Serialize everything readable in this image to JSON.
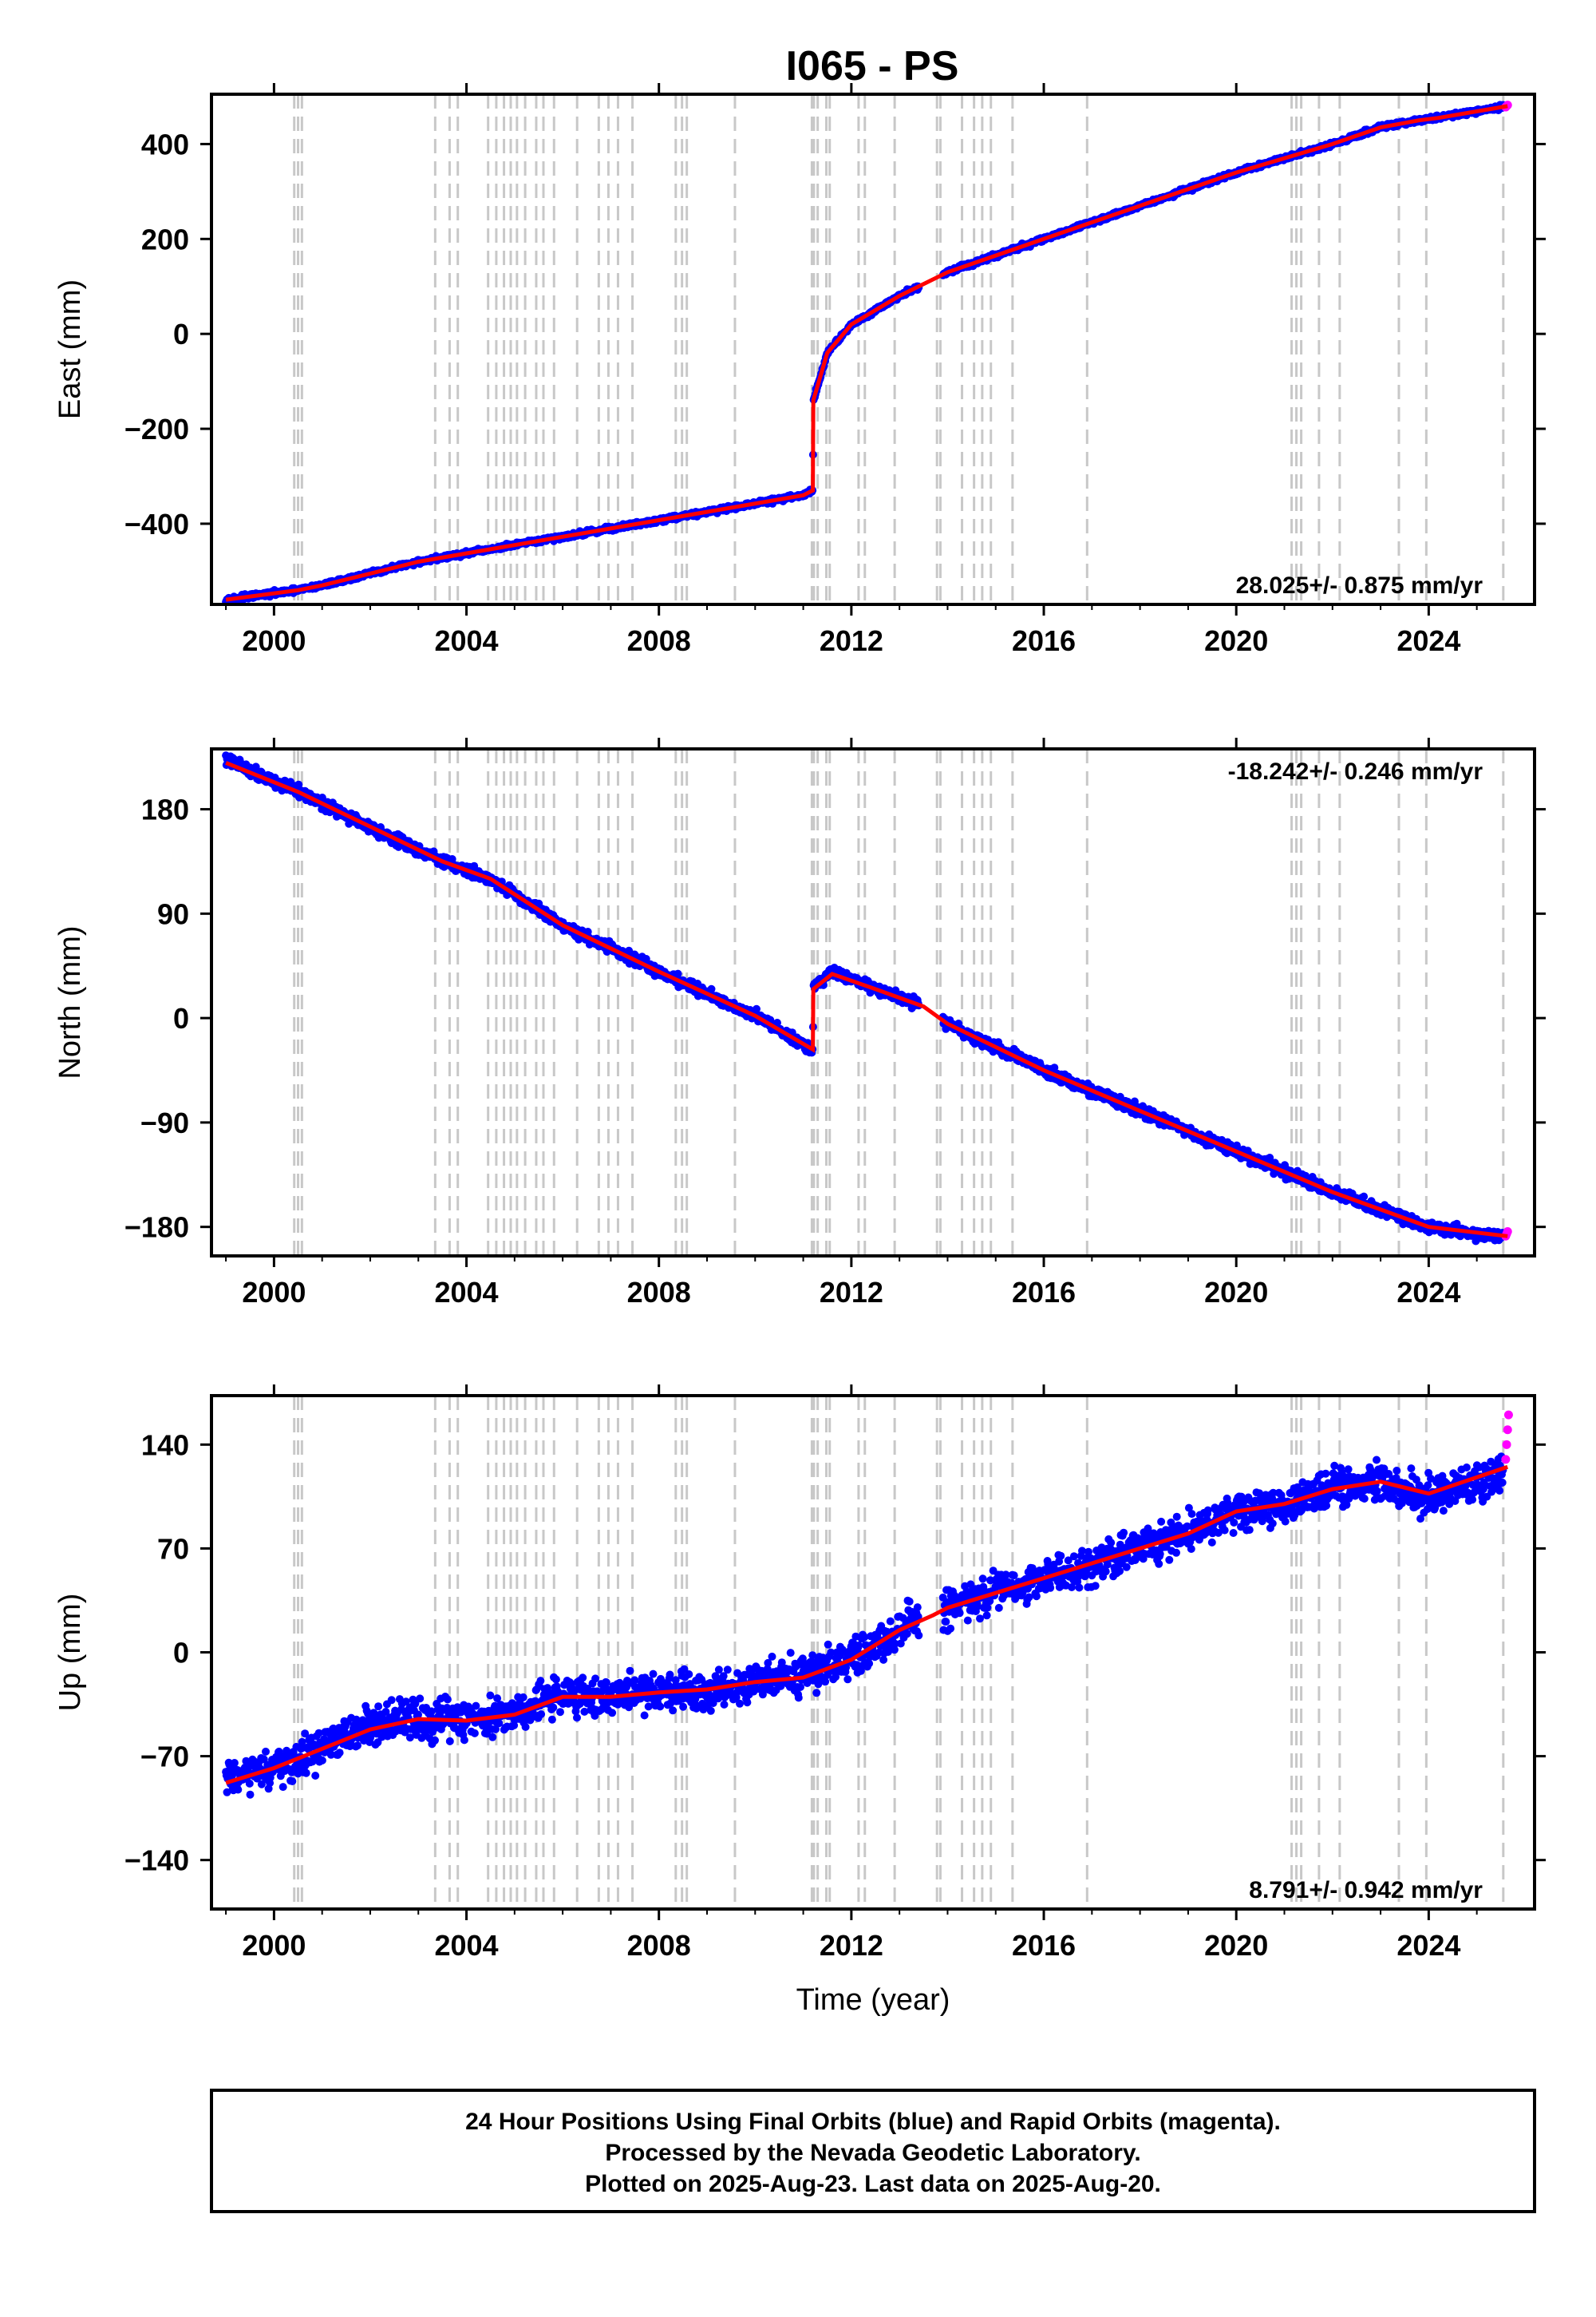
{
  "chart_data": {
    "title": "I065 - PS",
    "xlabel": "Time (year)",
    "xlim": [
      1998.7,
      2026.2
    ],
    "x_ticks": [
      2000,
      2004,
      2008,
      2012,
      2016,
      2020,
      2024
    ],
    "x_tick_labels": [
      "2000",
      "2004",
      "2008",
      "2012",
      "2016",
      "2020",
      "2024"
    ],
    "event_lines_x": [
      2000.42,
      2000.5,
      2000.58,
      2003.35,
      2003.65,
      2003.82,
      2004.45,
      2004.62,
      2004.78,
      2004.92,
      2005.05,
      2005.22,
      2005.45,
      2005.6,
      2005.82,
      2006.3,
      2006.75,
      2006.95,
      2007.15,
      2007.45,
      2008.35,
      2008.48,
      2008.58,
      2009.58,
      2011.18,
      2011.22,
      2011.3,
      2011.48,
      2011.55,
      2012.15,
      2012.28,
      2012.9,
      2013.78,
      2013.85,
      2014.3,
      2014.55,
      2014.72,
      2014.9,
      2015.35,
      2016.9,
      2021.15,
      2021.25,
      2021.35,
      2021.72,
      2022.15,
      2023.38,
      2023.95,
      2025.55
    ],
    "panels": [
      {
        "name": "East",
        "ylabel": "East (mm)",
        "ylim": [
          -570,
          505
        ],
        "y_ticks": [
          -400,
          -200,
          0,
          200,
          400
        ],
        "y_tick_labels": [
          "−400",
          "−200",
          "0",
          "200",
          "400"
        ],
        "rate_text": "28.025+/- 0.875 mm/yr",
        "rate_position": "bottom-right",
        "series": [
          {
            "name": "Final Orbits",
            "color": "#0000ff",
            "x": [
              1999.0,
              2000.5,
              2001.0,
              2003.0,
              2005.0,
              2007.0,
              2009.0,
              2011.0,
              2011.2,
              2011.21,
              2011.5,
              2012.0,
              2013.0,
              2014.0,
              2016.0,
              2018.0,
              2020.0,
              2022.0,
              2023.0,
              2023.8,
              2024.2,
              2025.55
            ],
            "y": [
              -560,
              -540,
              -530,
              -480,
              -445,
              -410,
              -375,
              -340,
              -330,
              -140,
              -40,
              20,
              80,
              130,
              200,
              270,
              340,
              400,
              435,
              450,
              455,
              478
            ]
          },
          {
            "name": "Rapid Orbits",
            "color": "#ff00ff",
            "x": [
              2025.6,
              2025.62,
              2025.64
            ],
            "y": [
              478,
              480,
              482
            ]
          }
        ],
        "model": {
          "color": "#ff0000",
          "x": [
            1999.0,
            2000.5,
            2001.0,
            2003.0,
            2005.0,
            2007.0,
            2009.0,
            2011.0,
            2011.2,
            2011.21,
            2011.5,
            2012.0,
            2013.0,
            2014.0,
            2016.0,
            2018.0,
            2020.0,
            2022.0,
            2023.0,
            2023.8,
            2024.2,
            2025.64
          ],
          "y": [
            -560,
            -540,
            -530,
            -480,
            -445,
            -410,
            -375,
            -340,
            -330,
            -140,
            -40,
            20,
            80,
            130,
            200,
            270,
            340,
            400,
            435,
            450,
            455,
            480
          ]
        }
      },
      {
        "name": "North",
        "ylabel": "North (mm)",
        "ylim": [
          -205,
          232
        ],
        "y_ticks": [
          -180,
          -90,
          0,
          90,
          180
        ],
        "y_tick_labels": [
          "−180",
          "−90",
          "0",
          "90",
          "180"
        ],
        "rate_text": "-18.242+/- 0.246 mm/yr",
        "rate_position": "top-right",
        "series": [
          {
            "name": "Final Orbits",
            "color": "#0000ff",
            "x": [
              1999.0,
              2000.5,
              2002.0,
              2003.5,
              2004.5,
              2006.0,
              2008.0,
              2010.0,
              2011.2,
              2011.21,
              2011.6,
              2012.5,
              2013.5,
              2014.0,
              2016.0,
              2018.0,
              2020.0,
              2022.0,
              2024.0,
              2025.55
            ],
            "y": [
              223,
              195,
              165,
              135,
              120,
              80,
              40,
              2,
              -27,
              25,
              40,
              25,
              10,
              -5,
              -45,
              -80,
              -115,
              -150,
              -180,
              -190
            ]
          },
          {
            "name": "Rapid Orbits",
            "color": "#ff00ff",
            "x": [
              2025.6,
              2025.62,
              2025.64
            ],
            "y": [
              -188,
              -186,
              -184
            ]
          }
        ],
        "model": {
          "color": "#ff0000",
          "x": [
            1999.0,
            2000.5,
            2002.0,
            2003.5,
            2004.5,
            2006.0,
            2008.0,
            2010.0,
            2011.2,
            2011.21,
            2011.6,
            2012.5,
            2013.5,
            2014.0,
            2016.0,
            2018.0,
            2020.0,
            2022.0,
            2024.0,
            2025.64
          ],
          "y": [
            220,
            195,
            165,
            135,
            120,
            80,
            40,
            2,
            -27,
            25,
            38,
            25,
            10,
            -5,
            -45,
            -80,
            -115,
            -150,
            -180,
            -188
          ]
        }
      },
      {
        "name": "Up",
        "ylabel": "Up (mm)",
        "ylim": [
          -173,
          173
        ],
        "y_ticks": [
          -140,
          -70,
          0,
          70,
          140
        ],
        "y_tick_labels": [
          "−140",
          "−70",
          "0",
          "70",
          "140"
        ],
        "rate_text": "8.791+/- 0.942 mm/yr",
        "rate_position": "bottom-right",
        "series": [
          {
            "name": "Final Orbits",
            "color": "#0000ff",
            "x": [
              1999.0,
              2000.0,
              2001.0,
              2002.0,
              2003.0,
              2004.0,
              2005.0,
              2006.0,
              2007.0,
              2008.0,
              2009.0,
              2010.0,
              2011.0,
              2012.0,
              2013.0,
              2014.0,
              2015.0,
              2016.0,
              2017.0,
              2018.0,
              2019.0,
              2020.0,
              2021.0,
              2022.0,
              2023.0,
              2024.0,
              2025.55
            ],
            "y": [
              -85,
              -80,
              -65,
              -50,
              -45,
              -45,
              -40,
              -28,
              -30,
              -25,
              -25,
              -20,
              -15,
              -5,
              15,
              30,
              40,
              50,
              60,
              70,
              80,
              95,
              100,
              110,
              115,
              105,
              120
            ]
          },
          {
            "name": "Rapid Orbits",
            "color": "#ff00ff",
            "x": [
              2025.6,
              2025.62,
              2025.64,
              2025.66
            ],
            "y": [
              130,
              140,
              150,
              160
            ]
          }
        ],
        "model": {
          "color": "#ff0000",
          "x": [
            1999.0,
            2000.0,
            2001.0,
            2002.0,
            2003.0,
            2004.0,
            2005.0,
            2006.0,
            2007.0,
            2008.0,
            2009.0,
            2010.0,
            2011.0,
            2012.0,
            2013.0,
            2013.7,
            2014.0,
            2015.0,
            2016.0,
            2017.0,
            2018.0,
            2019.0,
            2020.0,
            2021.0,
            2022.0,
            2023.0,
            2024.0,
            2025.64
          ],
          "y": [
            -88,
            -78,
            -65,
            -52,
            -45,
            -46,
            -42,
            -30,
            -30,
            -27,
            -25,
            -20,
            -17,
            -5,
            15,
            25,
            30,
            40,
            50,
            60,
            70,
            80,
            95,
            100,
            110,
            115,
            107,
            125
          ]
        }
      }
    ],
    "footer": {
      "line1": "24 Hour Positions Using Final Orbits (blue) and Rapid Orbits (magenta).",
      "line2": "Processed by the Nevada Geodetic Laboratory.",
      "line3": "Plotted on 2025-Aug-23. Last data on 2025-Aug-20."
    }
  }
}
